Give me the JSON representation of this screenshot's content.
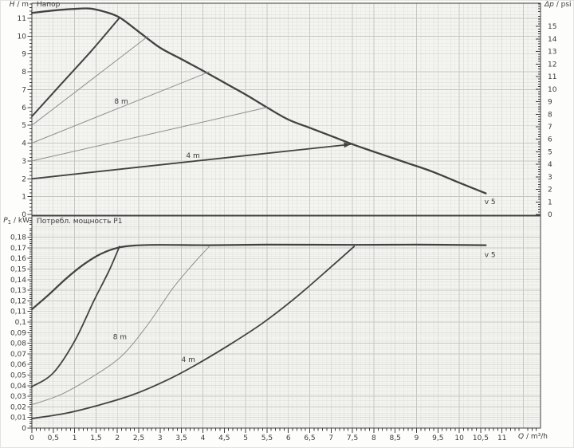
{
  "colors": {
    "plot_bg": "#f4f4f1",
    "grid_minor": "#e6e6e2",
    "grid_major": "#c6c6c2",
    "axis": "#3f3f3f",
    "curve_dark": "#424242",
    "curve_light": "#8f8f8f",
    "text": "#3b3b3b"
  },
  "chart_data": [
    {
      "type": "line",
      "title": "Напор",
      "ylabel": {
        "var": "H",
        "rest": " / m"
      },
      "y2label": {
        "var": "Δp",
        "rest": " / psi"
      },
      "xlim": [
        0,
        11.9
      ],
      "ylim": [
        0,
        11.85
      ],
      "y2lim": [
        0,
        16.86
      ],
      "grid": true,
      "y_minor_step": 0.2,
      "y2_minor_step": 0.2,
      "y_ticks": [
        {
          "v": 0,
          "t": "0"
        },
        {
          "v": 1,
          "t": "1"
        },
        {
          "v": 2,
          "t": "2"
        },
        {
          "v": 3,
          "t": "3"
        },
        {
          "v": 4,
          "t": "4"
        },
        {
          "v": 5,
          "t": "5"
        },
        {
          "v": 6,
          "t": "6"
        },
        {
          "v": 7,
          "t": "7"
        },
        {
          "v": 8,
          "t": "8"
        },
        {
          "v": 9,
          "t": "9"
        },
        {
          "v": 10,
          "t": "10"
        },
        {
          "v": 11,
          "t": "11"
        }
      ],
      "y2_ticks": [
        {
          "v": 0,
          "t": "0"
        },
        {
          "v": 1,
          "t": "1"
        },
        {
          "v": 2,
          "t": "2"
        },
        {
          "v": 3,
          "t": "3"
        },
        {
          "v": 4,
          "t": "4"
        },
        {
          "v": 5,
          "t": "5"
        },
        {
          "v": 6,
          "t": "6"
        },
        {
          "v": 7,
          "t": "7"
        },
        {
          "v": 8,
          "t": "8"
        },
        {
          "v": 9,
          "t": "9"
        },
        {
          "v": 10,
          "t": "10"
        },
        {
          "v": 11,
          "t": "11"
        },
        {
          "v": 12,
          "t": "12"
        },
        {
          "v": 13,
          "t": "13"
        },
        {
          "v": 14,
          "t": "14"
        },
        {
          "v": 15,
          "t": "15"
        }
      ],
      "series": [
        {
          "name": "max-speed-curve",
          "stroke": "dark",
          "width": 2.3,
          "smooth": true,
          "points": [
            [
              0,
              11.3
            ],
            [
              0.5,
              11.44
            ],
            [
              1,
              11.53
            ],
            [
              1.35,
              11.55
            ],
            [
              1.7,
              11.37
            ],
            [
              2.05,
              11.05
            ],
            [
              2.5,
              10.25
            ],
            [
              3,
              9.35
            ],
            [
              3.5,
              8.71
            ],
            [
              4.05,
              8.0
            ],
            [
              4.6,
              7.26
            ],
            [
              5.05,
              6.66
            ],
            [
              5.5,
              6.0
            ],
            [
              6,
              5.32
            ],
            [
              6.5,
              4.86
            ],
            [
              7,
              4.4
            ],
            [
              7.5,
              3.94
            ],
            [
              8,
              3.52
            ],
            [
              8.7,
              2.95
            ],
            [
              9.35,
              2.42
            ],
            [
              10,
              1.78
            ],
            [
              10.62,
              1.18
            ]
          ]
        },
        {
          "name": "control-curve-11m",
          "stroke": "dark",
          "width": 2,
          "smooth": true,
          "points": [
            [
              0,
              5.5
            ],
            [
              0.7,
              7.35
            ],
            [
              1.4,
              9.2
            ],
            [
              2.05,
              11.03
            ]
          ]
        },
        {
          "name": "control-curve-10m",
          "stroke": "light",
          "width": 1,
          "smooth": false,
          "points": [
            [
              0,
              5.0
            ],
            [
              1.36,
              7.5
            ],
            [
              2.72,
              10.0
            ]
          ]
        },
        {
          "name": "control-curve-8m",
          "stroke": "light",
          "width": 1,
          "smooth": false,
          "points": [
            [
              0,
              4.0
            ],
            [
              2.07,
              6.0
            ],
            [
              4.15,
              8.0
            ]
          ]
        },
        {
          "name": "control-curve-6m",
          "stroke": "light",
          "width": 1,
          "smooth": false,
          "points": [
            [
              0,
              3.0
            ],
            [
              2.75,
              4.5
            ],
            [
              5.5,
              6.0
            ]
          ]
        },
        {
          "name": "control-curve-4m",
          "stroke": "dark",
          "width": 1.8,
          "smooth": false,
          "arrow": true,
          "points": [
            [
              0,
              2.0
            ],
            [
              2.5,
              2.65
            ],
            [
              5,
              3.3
            ],
            [
              7.45,
              3.93
            ]
          ]
        }
      ],
      "annotations": [
        {
          "t": "8 m",
          "x": 2.09,
          "y": 6.35
        },
        {
          "t": "4 m",
          "x": 3.77,
          "y": 3.3
        },
        {
          "t": "v 5",
          "x": 10.72,
          "y": 0.72
        }
      ]
    },
    {
      "type": "line",
      "title": "Потребл. мощность P1",
      "ylabel": {
        "var": "P",
        "sub": "1",
        "rest": " / kW"
      },
      "xlabel": {
        "var": "Q",
        "rest": " / m³/h"
      },
      "xlim": [
        0,
        11.9
      ],
      "ylim": [
        0,
        0.2
      ],
      "grid": true,
      "y_minor_step": 0.002,
      "x_minor_step": 0.1,
      "y_ticks": [
        {
          "v": 0,
          "t": "0"
        },
        {
          "v": 0.01,
          "t": "0,01"
        },
        {
          "v": 0.02,
          "t": "0,02"
        },
        {
          "v": 0.03,
          "t": "0,03"
        },
        {
          "v": 0.04,
          "t": "0,04"
        },
        {
          "v": 0.05,
          "t": "0,05"
        },
        {
          "v": 0.06,
          "t": "0,06"
        },
        {
          "v": 0.07,
          "t": "0,07"
        },
        {
          "v": 0.08,
          "t": "0,08"
        },
        {
          "v": 0.09,
          "t": "0,09"
        },
        {
          "v": 0.1,
          "t": "0,1"
        },
        {
          "v": 0.11,
          "t": "0,11"
        },
        {
          "v": 0.12,
          "t": "0,12"
        },
        {
          "v": 0.13,
          "t": "0,13"
        },
        {
          "v": 0.14,
          "t": "0,14"
        },
        {
          "v": 0.15,
          "t": "0,15"
        },
        {
          "v": 0.16,
          "t": "0,16"
        },
        {
          "v": 0.17,
          "t": "0,17"
        },
        {
          "v": 0.18,
          "t": "0,18"
        }
      ],
      "x_ticks": [
        {
          "v": 0,
          "t": "0"
        },
        {
          "v": 0.5,
          "t": "0,5"
        },
        {
          "v": 1,
          "t": "1"
        },
        {
          "v": 1.5,
          "t": "1,5"
        },
        {
          "v": 2,
          "t": "2"
        },
        {
          "v": 2.5,
          "t": "2,5"
        },
        {
          "v": 3,
          "t": "3"
        },
        {
          "v": 3.5,
          "t": "3,5"
        },
        {
          "v": 4,
          "t": "4"
        },
        {
          "v": 4.5,
          "t": "4,5"
        },
        {
          "v": 5,
          "t": "5"
        },
        {
          "v": 5.5,
          "t": "5,5"
        },
        {
          "v": 6,
          "t": "6"
        },
        {
          "v": 6.5,
          "t": "6,5"
        },
        {
          "v": 7,
          "t": "7"
        },
        {
          "v": 7.5,
          "t": "7,5"
        },
        {
          "v": 8,
          "t": "8"
        },
        {
          "v": 8.5,
          "t": "8,5"
        },
        {
          "v": 9,
          "t": "9"
        },
        {
          "v": 9.5,
          "t": "9,5"
        },
        {
          "v": 10,
          "t": "10"
        },
        {
          "v": 10.5,
          "t": "10,5"
        },
        {
          "v": 11,
          "t": "11"
        }
      ],
      "series": [
        {
          "name": "power-max-speed-curve",
          "stroke": "dark",
          "width": 2.2,
          "smooth": true,
          "points": [
            [
              0,
              0.112
            ],
            [
              0.4,
              0.126
            ],
            [
              0.8,
              0.141
            ],
            [
              1.2,
              0.154
            ],
            [
              1.6,
              0.164
            ],
            [
              2,
              0.17
            ],
            [
              2.4,
              0.1722
            ],
            [
              3,
              0.1728
            ],
            [
              4.15,
              0.1725
            ],
            [
              5.5,
              0.173
            ],
            [
              7.55,
              0.1728
            ],
            [
              9,
              0.173
            ],
            [
              10.62,
              0.1725
            ]
          ]
        },
        {
          "name": "power-control-curve-11m",
          "stroke": "dark",
          "width": 1.8,
          "smooth": true,
          "points": [
            [
              0,
              0.039
            ],
            [
              0.5,
              0.052
            ],
            [
              1,
              0.082
            ],
            [
              1.45,
              0.12
            ],
            [
              1.8,
              0.148
            ],
            [
              2.05,
              0.1713
            ]
          ]
        },
        {
          "name": "power-control-curve-8m",
          "stroke": "light",
          "width": 1,
          "smooth": true,
          "points": [
            [
              0,
              0.022
            ],
            [
              0.7,
              0.032
            ],
            [
              1.4,
              0.048
            ],
            [
              2.1,
              0.068
            ],
            [
              2.7,
              0.097
            ],
            [
              3.3,
              0.132
            ],
            [
              3.8,
              0.156
            ],
            [
              4.15,
              0.1713
            ]
          ]
        },
        {
          "name": "power-control-curve-4m",
          "stroke": "dark",
          "width": 1.8,
          "smooth": true,
          "points": [
            [
              0,
              0.009
            ],
            [
              0.8,
              0.014
            ],
            [
              1.6,
              0.022
            ],
            [
              2.4,
              0.032
            ],
            [
              3.2,
              0.046
            ],
            [
              3.81,
              0.059
            ],
            [
              4.6,
              0.078
            ],
            [
              5.4,
              0.099
            ],
            [
              6.2,
              0.124
            ],
            [
              7,
              0.152
            ],
            [
              7.54,
              0.1713
            ]
          ]
        }
      ],
      "annotations": [
        {
          "t": "8 m",
          "x": 2.06,
          "y": 0.086
        },
        {
          "t": "4 m",
          "x": 3.66,
          "y": 0.0645
        },
        {
          "t": "v 5",
          "x": 10.72,
          "y": 0.1635
        }
      ]
    }
  ]
}
